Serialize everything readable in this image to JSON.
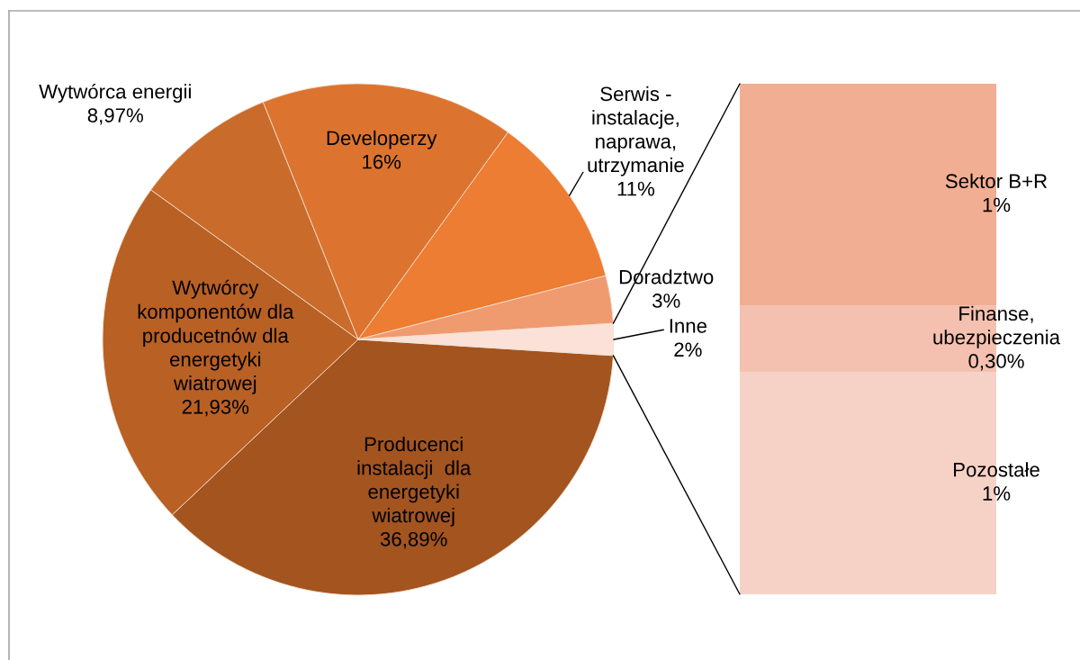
{
  "chart_data": [
    {
      "type": "pie",
      "categories": [
        "Producenci\ninstalacji  dla\nenergetyki\nwiatrowej",
        "Wytwórcy\nkomponentów dla\nproducetnów dla\nenergetyki\nwiatrowej",
        "Wytwórca energii",
        "Developerzy",
        "Serwis -\ninstalacje,\nnaprawa,\nutrzymanie",
        "Doradztwo",
        "Inne"
      ],
      "values": [
        36.89,
        21.93,
        8.97,
        16,
        11,
        3,
        2
      ],
      "value_labels": [
        "36,89%",
        "21,93%",
        "8,97%",
        "16%",
        "11%",
        "3%",
        "2%"
      ],
      "colors": [
        "#a3541f",
        "#b96024",
        "#c96b2b",
        "#dc742f",
        "#ec7d32",
        "#f09a6f",
        "#fbe1d8"
      ]
    },
    {
      "type": "bar",
      "stacked": true,
      "categories": [
        null
      ],
      "tick_labels": false,
      "series": [
        {
          "name": "Pozostałe",
          "color": "#f6d2c6",
          "values": [
            1
          ],
          "value_labels": [
            "1%"
          ]
        },
        {
          "name": "Finanse,\nubezpieczenia",
          "color": "#f4c0af",
          "values": [
            0.3
          ],
          "value_labels": [
            "0,30%"
          ]
        },
        {
          "name": "Sektor B+R",
          "color": "#f1ae93",
          "values": [
            1
          ],
          "value_labels": [
            "1%"
          ]
        }
      ]
    }
  ]
}
